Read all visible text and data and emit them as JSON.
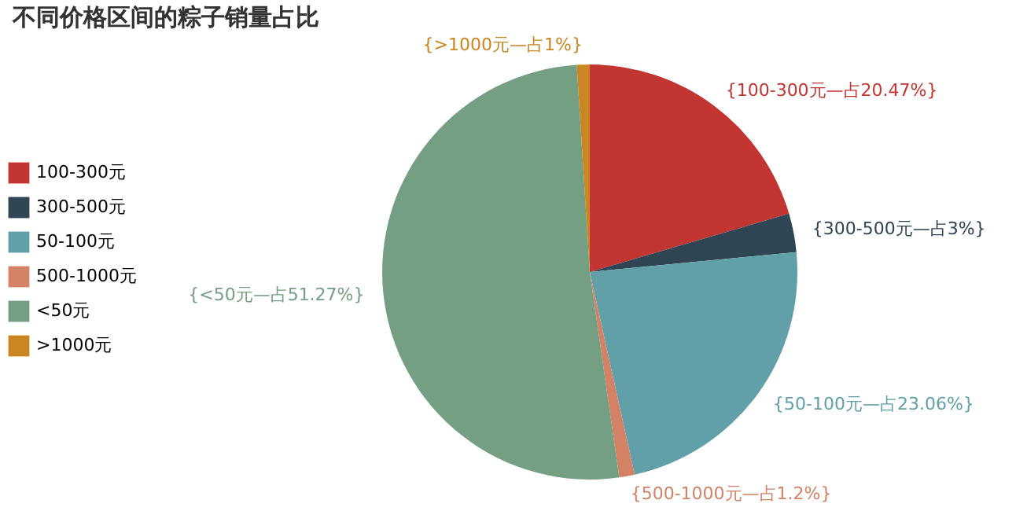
{
  "chart_data": {
    "type": "pie",
    "title": "不同价格区间的粽子销量占比",
    "categories": [
      "100-300元",
      "300-500元",
      "50-100元",
      "500-1000元",
      "<50元",
      ">1000元"
    ],
    "values": [
      20.47,
      3,
      23.06,
      1.2,
      51.27,
      1
    ],
    "colors": [
      "#c23531",
      "#2f4554",
      "#61a0a8",
      "#d48265",
      "#749f83",
      "#ca8622"
    ],
    "value_labels": [
      "{100-300元—占20.47%}",
      "{300-500元—占3%}",
      "{50-100元—占23.06%}",
      "{500-1000元—占1.2%}",
      "{<50元—占51.27%}",
      "{>1000元—占1%}"
    ],
    "legend": "left"
  }
}
